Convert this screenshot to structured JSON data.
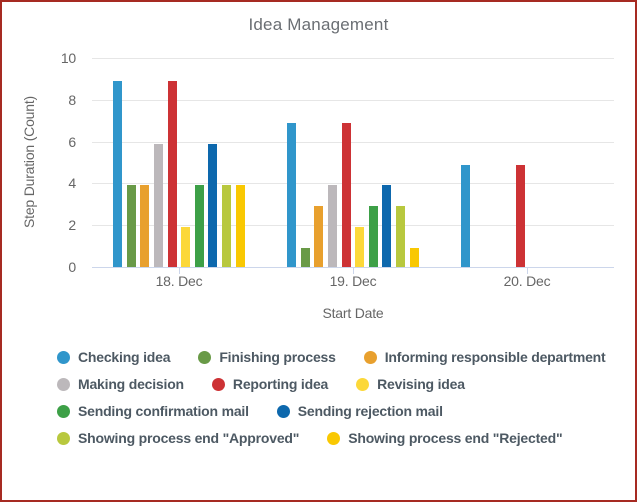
{
  "window": {
    "border_color": "#a62a22",
    "background_color": "#ffffff"
  },
  "chart_data": {
    "type": "bar",
    "title": "Idea Management",
    "xlabel": "Start Date",
    "ylabel": "Step Duration (Count)",
    "categories": [
      "18. Dec",
      "19. Dec",
      "20. Dec"
    ],
    "ylim": [
      0,
      10
    ],
    "yticks": [
      0,
      2,
      4,
      6,
      8,
      10
    ],
    "grid": true,
    "legend_position": "bottom",
    "axis_line_color": "#ccd6eb",
    "gridline_color": "#e6e6e6",
    "series": [
      {
        "name": "Checking idea",
        "color": "#3096cb",
        "values": [
          9,
          7,
          5
        ]
      },
      {
        "name": "Finishing process",
        "color": "#699a47",
        "values": [
          4,
          1,
          null
        ]
      },
      {
        "name": "Informing responsible department",
        "color": "#e8a02e",
        "values": [
          4,
          3,
          null
        ]
      },
      {
        "name": "Making decision",
        "color": "#bcb8bb",
        "values": [
          6,
          4,
          null
        ]
      },
      {
        "name": "Reporting idea",
        "color": "#cd3235",
        "values": [
          9,
          7,
          5
        ]
      },
      {
        "name": "Revising idea",
        "color": "#fcd839",
        "values": [
          2,
          2,
          null
        ]
      },
      {
        "name": "Sending confirmation mail",
        "color": "#3da047",
        "values": [
          4,
          3,
          null
        ]
      },
      {
        "name": "Sending rejection mail",
        "color": "#0d68ad",
        "values": [
          6,
          4,
          null
        ]
      },
      {
        "name": "Showing process end \"Approved\"",
        "color": "#b8c83e",
        "values": [
          4,
          3,
          null
        ]
      },
      {
        "name": "Showing process end \"Rejected\"",
        "color": "#f9c802",
        "values": [
          4,
          1,
          null
        ]
      }
    ]
  }
}
